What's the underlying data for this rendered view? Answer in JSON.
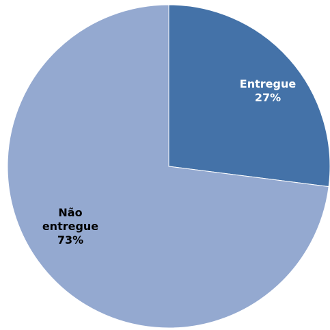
{
  "chart_data": {
    "type": "pie",
    "title": "",
    "slices": [
      {
        "label": "Entregue",
        "value": 27,
        "value_label": "27%",
        "color": "#4472a8",
        "label_color": "#ffffff"
      },
      {
        "label": "Não entregue",
        "value": 73,
        "value_label": "73%",
        "color": "#94a9d0",
        "label_color": "#000000"
      }
    ],
    "start_angle": "12 o'clock",
    "direction": "clockwise",
    "legend": "none",
    "data_labels": "inside"
  }
}
